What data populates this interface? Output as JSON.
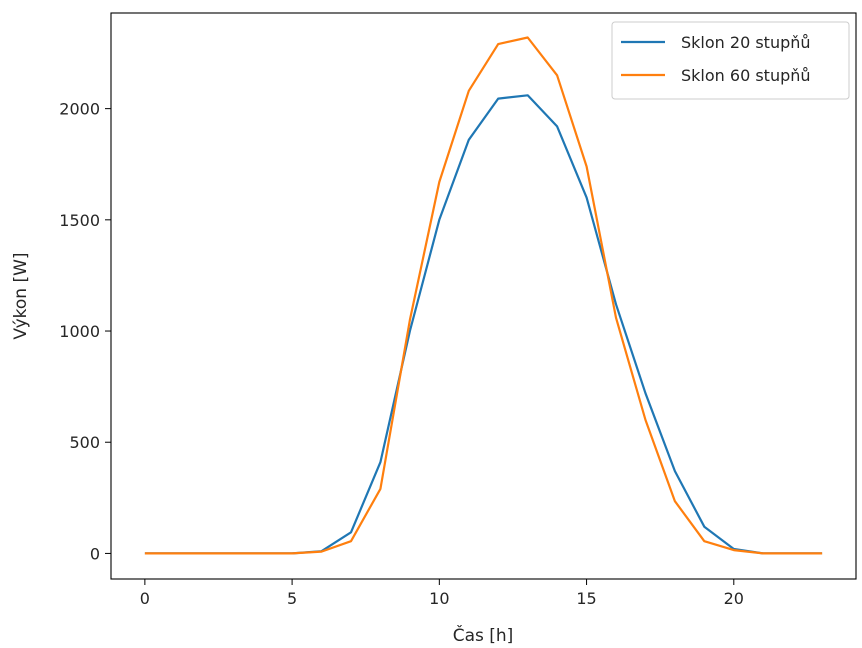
{
  "chart_data": {
    "type": "line",
    "xlabel": "Čas [h]",
    "ylabel": "Výkon [W]",
    "xlim": [
      -1.15,
      24.15
    ],
    "ylim": [
      -115,
      2430
    ],
    "x_ticks": [
      0,
      5,
      10,
      15,
      20
    ],
    "y_ticks": [
      0,
      500,
      1000,
      1500,
      2000
    ],
    "grid": false,
    "legend_position": "top-right",
    "x": [
      0,
      1,
      2,
      3,
      4,
      5,
      6,
      7,
      8,
      9,
      10,
      11,
      12,
      13,
      14,
      15,
      16,
      17,
      18,
      19,
      20,
      21,
      22,
      23
    ],
    "series": [
      {
        "name": "Sklon 20 stupňů",
        "color": "#1f77b4",
        "values": [
          0,
          0,
          0,
          0,
          0,
          0,
          10,
          95,
          410,
          1000,
          1500,
          1860,
          2045,
          2060,
          1920,
          1600,
          1120,
          720,
          370,
          120,
          20,
          0,
          0,
          0
        ]
      },
      {
        "name": "Sklon 60 stupňů",
        "color": "#ff7f0e",
        "values": [
          0,
          0,
          0,
          0,
          0,
          0,
          8,
          55,
          290,
          1050,
          1670,
          2080,
          2290,
          2320,
          2150,
          1740,
          1060,
          600,
          235,
          55,
          15,
          0,
          0,
          0
        ]
      }
    ]
  }
}
